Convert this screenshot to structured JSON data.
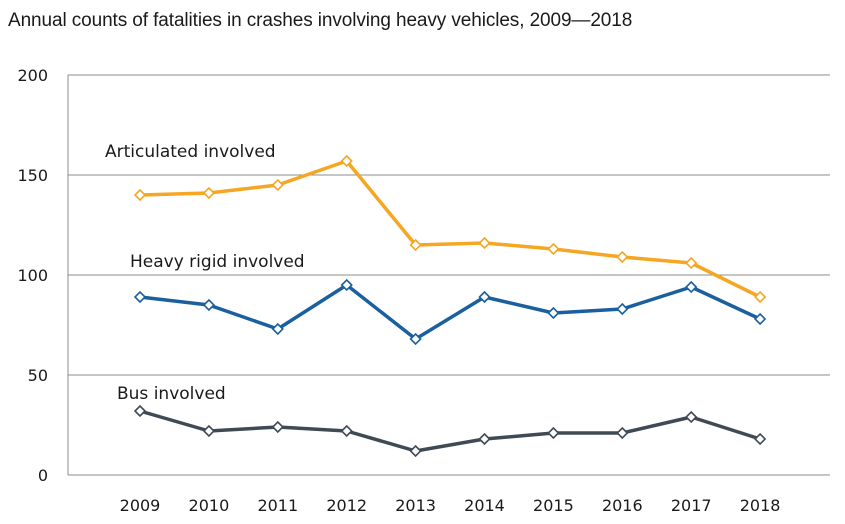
{
  "chart_data": {
    "type": "line",
    "title": "Annual counts of fatalities in crashes involving heavy vehicles, 2009—2018",
    "xlabel": "",
    "ylabel": "",
    "categories": [
      "2009",
      "2010",
      "2011",
      "2012",
      "2013",
      "2014",
      "2015",
      "2016",
      "2017",
      "2018"
    ],
    "ylim": [
      0,
      200
    ],
    "yticks": [
      0,
      50,
      100,
      150,
      200
    ],
    "ytick_labels": [
      "0",
      "50",
      "100",
      "150",
      "200"
    ],
    "grid": true,
    "series": [
      {
        "name": "Articulated involved",
        "color": "#f5a623",
        "values": [
          140,
          141,
          145,
          157,
          115,
          116,
          113,
          109,
          106,
          89
        ]
      },
      {
        "name": "Heavy rigid involved",
        "color": "#1a5f9e",
        "values": [
          89,
          85,
          73,
          95,
          68,
          89,
          81,
          83,
          94,
          78
        ]
      },
      {
        "name": "Bus involved",
        "color": "#3f4a55",
        "values": [
          32,
          22,
          24,
          22,
          12,
          18,
          21,
          21,
          29,
          18
        ]
      }
    ]
  }
}
